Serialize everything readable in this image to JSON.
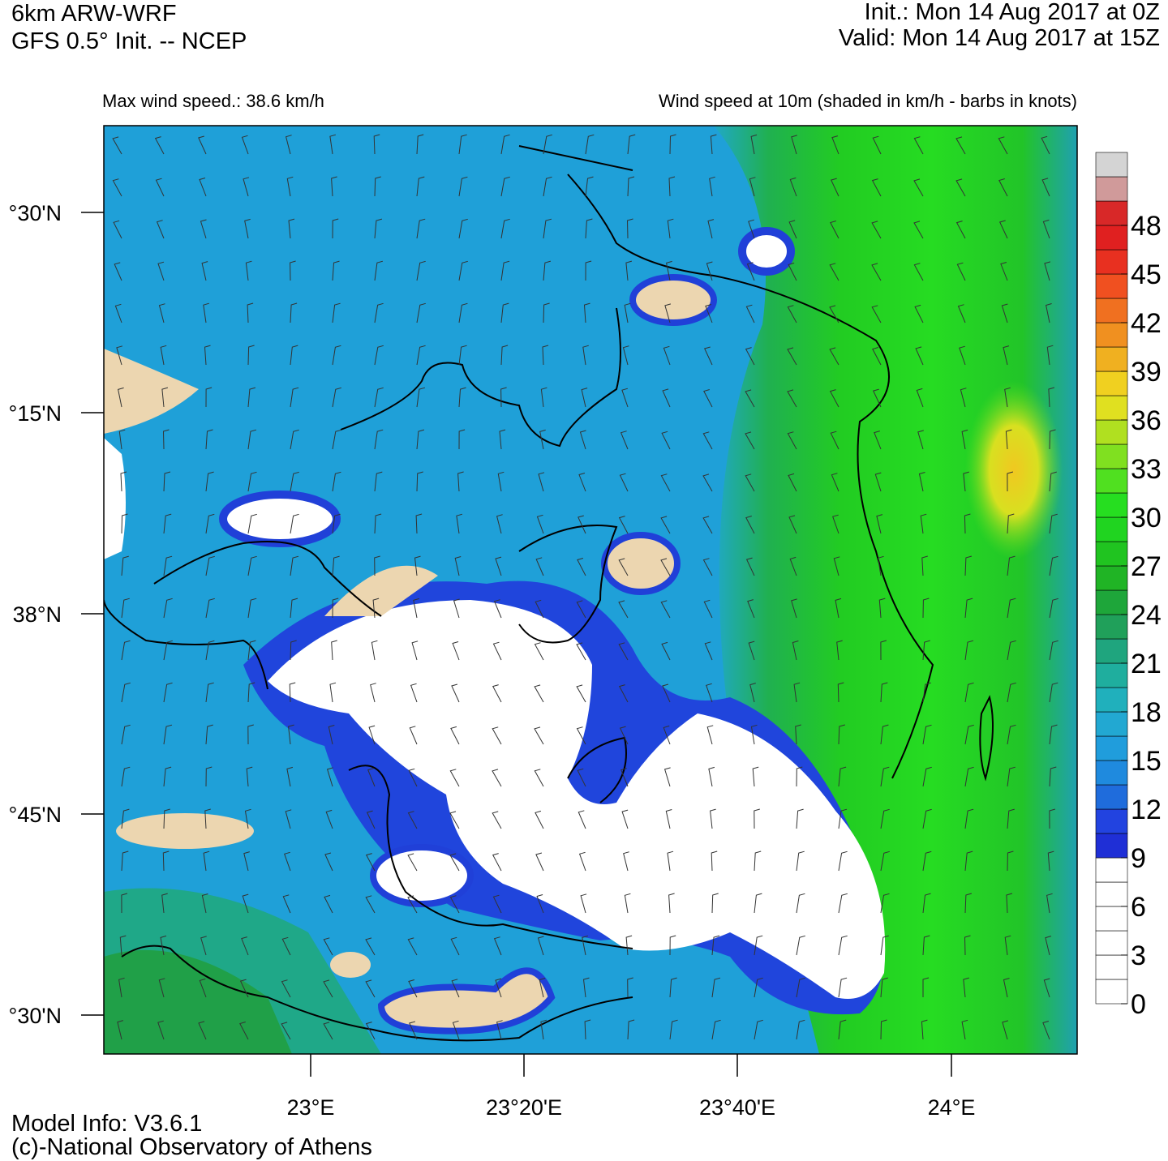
{
  "header": {
    "model": "6km ARW-WRF",
    "source": "GFS 0.5° Init. -- NCEP",
    "init": "Init.:  Mon 14 Aug 2017 at 0Z",
    "valid": "Valid: Mon 14 Aug 2017 at 15Z"
  },
  "subtitle_left": "Max wind speed.: 38.6 km/h",
  "subtitle_right": "Wind speed at 10m (shaded in km/h - barbs in knots)",
  "map": {
    "y_labels": [
      "°30'N",
      "°15'N",
      "38°N",
      "°45'N",
      "°30'N"
    ],
    "x_labels": [
      "23°E",
      "23°20'E",
      "23°40'E",
      "24°E"
    ]
  },
  "colorbar": {
    "ticks": [
      0,
      3,
      6,
      9,
      12,
      15,
      18,
      21,
      24,
      27,
      30,
      33,
      36,
      39,
      42,
      45,
      48
    ],
    "bounds": [
      0,
      1.5,
      3,
      4.5,
      6,
      7.5,
      9,
      10.5,
      12,
      13.5,
      15,
      16.5,
      18,
      19.5,
      21,
      22.5,
      24,
      25.5,
      27,
      28.5,
      30,
      31.5,
      33,
      34.5,
      36,
      37.5,
      39,
      40.5,
      42,
      43.5,
      45,
      46.5,
      48,
      49.5,
      51,
      52.5
    ],
    "colors": [
      "#ffffff",
      "#ffffff",
      "#ffffff",
      "#ffffff",
      "#ffffff",
      "#ffffff",
      "#1f2fd6",
      "#2243e0",
      "#1f6cdc",
      "#1f8ade",
      "#209ddc",
      "#22a8d2",
      "#20b0bc",
      "#1fae9e",
      "#1fa57e",
      "#20a05a",
      "#1ea63a",
      "#20b425",
      "#20c420",
      "#20d420",
      "#26de20",
      "#50e020",
      "#80e020",
      "#b0e020",
      "#e0e020",
      "#f0d020",
      "#f0b020",
      "#f09020",
      "#f07020",
      "#f05020",
      "#e83020",
      "#e02020",
      "#d82828",
      "#d09a9a",
      "#d4d4d4"
    ]
  },
  "footer": {
    "model_info": "Model Info: V3.6.1",
    "credit": "(c)-National Observatory of Athens"
  }
}
